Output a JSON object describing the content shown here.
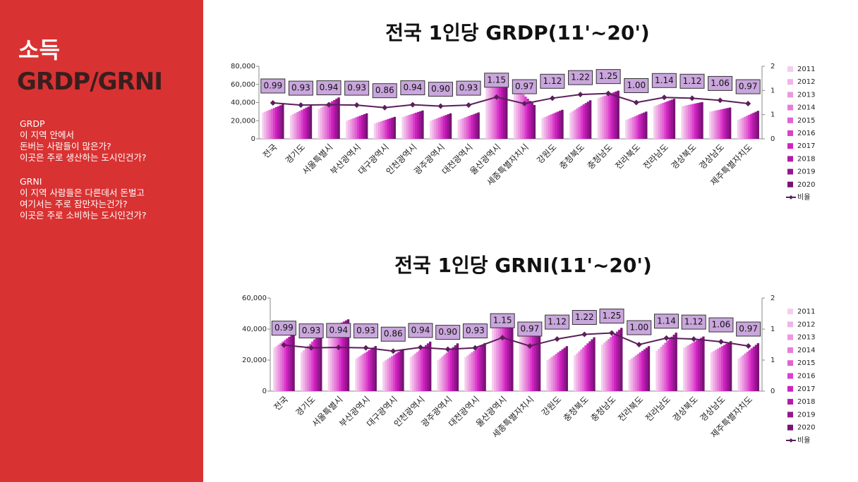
{
  "sidebar": {
    "title": "소득",
    "subtitle": "GRDP/GRNI",
    "paragraphs": [
      [
        "GRDP",
        "이 지역 안에서",
        "돈버는 사람들이 많은가?",
        "이곳은 주로 생산하는 도시인건가?"
      ],
      [
        "GRNI",
        "이 지역 사람들은 다른데서 돈벌고",
        "여기서는 주로 잠만자는건가?",
        "이곳은 주로 소비하는 도시인건가?"
      ]
    ]
  },
  "chart_data": [
    {
      "type": "bar",
      "title": "전국 1인당 GRDP(11'~20')",
      "categories": [
        "전국",
        "경기도",
        "서울특별시",
        "부산광역시",
        "대구광역시",
        "인천광역시",
        "광주광역시",
        "대전광역시",
        "울산광역시",
        "세종특별자치시",
        "강원도",
        "충청북도",
        "충청남도",
        "전라북도",
        "전라남도",
        "경상북도",
        "경상남도",
        "제주특별자치도"
      ],
      "ylim": [
        0,
        80000
      ],
      "yticks": [
        0,
        {
          "value": 20000,
          "label": "20,000"
        },
        {
          "value": 40000,
          "label": "40,000"
        },
        {
          "value": 60000,
          "label": "60,000"
        },
        {
          "value": 80000,
          "label": "80,000"
        }
      ],
      "y2lim": [
        0,
        2
      ],
      "y2ticks": [
        0,
        {
          "value": 0.667,
          "label": "1"
        },
        {
          "value": 1.333,
          "label": "1"
        },
        2
      ],
      "grid": false,
      "legend": "right",
      "series": [
        {
          "name": "2011",
          "color": "#f6cdef",
          "values": [
            29000,
            26000,
            33000,
            20000,
            17000,
            24000,
            20000,
            21000,
            60000,
            58000,
            23000,
            29000,
            45000,
            21000,
            36000,
            36000,
            30000,
            21000
          ]
        },
        {
          "name": "2012",
          "color": "#f1b3e8",
          "values": [
            30000,
            27200,
            34400,
            20900,
            17800,
            24800,
            20900,
            21900,
            60500,
            55700,
            24000,
            30500,
            45900,
            22000,
            36900,
            36500,
            30500,
            22100
          ]
        },
        {
          "name": "2013",
          "color": "#eb98e0",
          "values": [
            31000,
            28400,
            35800,
            21800,
            18600,
            25600,
            21800,
            22800,
            61000,
            53400,
            25000,
            32000,
            46800,
            23000,
            37800,
            37000,
            31000,
            23200
          ]
        },
        {
          "name": "2014",
          "color": "#e67dd9",
          "values": [
            32000,
            29600,
            37200,
            22700,
            19400,
            26400,
            22700,
            23700,
            61500,
            51100,
            26000,
            33500,
            47700,
            24000,
            38700,
            37500,
            31500,
            24300
          ]
        },
        {
          "name": "2015",
          "color": "#e063d1",
          "values": [
            33000,
            30800,
            38600,
            23600,
            20200,
            27200,
            23600,
            24600,
            62000,
            48800,
            27000,
            35000,
            48600,
            25000,
            39600,
            38000,
            32000,
            25400
          ]
        },
        {
          "name": "2016",
          "color": "#dc3fcc",
          "values": [
            34000,
            32000,
            40000,
            24500,
            21000,
            28000,
            24500,
            25500,
            62500,
            46500,
            28000,
            36500,
            49500,
            26000,
            40500,
            38500,
            32500,
            26500
          ]
        },
        {
          "name": "2017",
          "color": "#cf22c0",
          "values": [
            35000,
            33200,
            41400,
            25400,
            21800,
            28800,
            25400,
            26400,
            63000,
            44200,
            29000,
            38000,
            50400,
            27000,
            41400,
            39000,
            33000,
            27600
          ]
        },
        {
          "name": "2018",
          "color": "#b41aa8",
          "values": [
            36000,
            34400,
            42800,
            26300,
            22600,
            29600,
            26300,
            27300,
            63500,
            41900,
            30000,
            39500,
            51300,
            28000,
            42300,
            39500,
            33500,
            28700
          ]
        },
        {
          "name": "2019",
          "color": "#951690",
          "values": [
            37000,
            35600,
            44200,
            27200,
            23400,
            30400,
            27200,
            28200,
            64000,
            39600,
            31000,
            41000,
            52200,
            29000,
            43200,
            40000,
            34000,
            29800
          ]
        },
        {
          "name": "2020",
          "color": "#7a1276",
          "values": [
            38000,
            36800,
            45600,
            28100,
            24200,
            31200,
            28100,
            29100,
            64500,
            37300,
            32000,
            42500,
            53100,
            30000,
            44100,
            40500,
            34500,
            30900
          ]
        },
        {
          "name": "비율",
          "type": "line",
          "axis": "y2",
          "color": "#5a1f5a",
          "values": [
            0.99,
            0.93,
            0.94,
            0.93,
            0.86,
            0.94,
            0.9,
            0.93,
            1.15,
            0.97,
            1.12,
            1.22,
            1.25,
            1.0,
            1.14,
            1.12,
            1.06,
            0.97
          ],
          "value_labels": [
            "0.99",
            "0.93",
            "0.94",
            "0.93",
            "0.86",
            "0.94",
            "0.90",
            "0.93",
            "1.15",
            "0.97",
            "1.12",
            "1.22",
            "1.25",
            "1.00",
            "1.14",
            "1.12",
            "1.06",
            "0.97"
          ]
        }
      ]
    },
    {
      "type": "bar",
      "title": "전국 1인당 GRNI(11'~20')",
      "categories": [
        "전국",
        "경기도",
        "서울특별시",
        "부산광역시",
        "대구광역시",
        "인천광역시",
        "광주광역시",
        "대전광역시",
        "울산광역시",
        "세종특별자치시",
        "강원도",
        "충청북도",
        "충청남도",
        "전라북도",
        "전라남도",
        "경상북도",
        "경상남도",
        "제주특별자치도"
      ],
      "ylim": [
        0,
        60000
      ],
      "yticks": [
        0,
        {
          "value": 20000,
          "label": "20,000"
        },
        {
          "value": 40000,
          "label": "40,000"
        },
        {
          "value": 60000,
          "label": "60,000"
        }
      ],
      "y2lim": [
        0,
        2
      ],
      "y2ticks": [
        0,
        {
          "value": 0.667,
          "label": "1"
        },
        {
          "value": 1.333,
          "label": "1"
        },
        2
      ],
      "grid": false,
      "legend": "right",
      "series": [
        {
          "name": "2011",
          "color": "#f6cdef",
          "values": [
            28000,
            25000,
            40000,
            21000,
            19000,
            22000,
            20000,
            22000,
            44000,
            42000,
            20000,
            23000,
            30000,
            20000,
            26000,
            28000,
            25000,
            21000
          ]
        },
        {
          "name": "2012",
          "color": "#f1b3e8",
          "values": [
            29000,
            26400,
            40700,
            21900,
            19900,
            23100,
            21200,
            23000,
            44500,
            41600,
            21000,
            24300,
            31200,
            21000,
            27300,
            28800,
            25800,
            22100
          ]
        },
        {
          "name": "2013",
          "color": "#eb98e0",
          "values": [
            30000,
            27800,
            41400,
            22800,
            20800,
            24200,
            22400,
            24000,
            45000,
            41200,
            22000,
            25600,
            32400,
            22000,
            28600,
            29600,
            26600,
            23200
          ]
        },
        {
          "name": "2014",
          "color": "#e67dd9",
          "values": [
            31000,
            29200,
            42100,
            23700,
            21700,
            25300,
            23600,
            25000,
            45500,
            40800,
            23000,
            26900,
            33600,
            23000,
            29900,
            30400,
            27400,
            24300
          ]
        },
        {
          "name": "2015",
          "color": "#e063d1",
          "values": [
            32000,
            30600,
            42800,
            24600,
            22600,
            26400,
            24800,
            26000,
            46000,
            40400,
            24000,
            28200,
            34800,
            24000,
            31200,
            31200,
            28200,
            25400
          ]
        },
        {
          "name": "2016",
          "color": "#dc3fcc",
          "values": [
            33000,
            32000,
            43500,
            25500,
            23500,
            27500,
            26000,
            27000,
            46500,
            40000,
            25000,
            29500,
            36000,
            25000,
            32500,
            32000,
            29000,
            26500
          ]
        },
        {
          "name": "2017",
          "color": "#cf22c0",
          "values": [
            34000,
            33400,
            44200,
            26400,
            24400,
            28600,
            27200,
            28000,
            47000,
            39600,
            26000,
            30800,
            37200,
            26000,
            33800,
            32800,
            29800,
            27600
          ]
        },
        {
          "name": "2018",
          "color": "#b41aa8",
          "values": [
            35000,
            34800,
            44900,
            27300,
            25300,
            29700,
            28400,
            29000,
            47500,
            39200,
            27000,
            32100,
            38400,
            27000,
            35100,
            33600,
            30600,
            28700
          ]
        },
        {
          "name": "2019",
          "color": "#951690",
          "values": [
            36000,
            36200,
            45600,
            28200,
            26200,
            30800,
            29600,
            30000,
            48000,
            38800,
            28000,
            33400,
            39600,
            28000,
            36400,
            34400,
            31400,
            29800
          ]
        },
        {
          "name": "2020",
          "color": "#7a1276",
          "values": [
            37000,
            37600,
            46300,
            29100,
            27100,
            31900,
            30800,
            31000,
            48500,
            38400,
            29000,
            34700,
            40800,
            29000,
            37700,
            35200,
            32200,
            30900
          ]
        },
        {
          "name": "비율",
          "type": "line",
          "axis": "y2",
          "color": "#5a1f5a",
          "values": [
            0.99,
            0.93,
            0.94,
            0.93,
            0.86,
            0.94,
            0.9,
            0.93,
            1.15,
            0.97,
            1.12,
            1.22,
            1.25,
            1.0,
            1.14,
            1.12,
            1.06,
            0.97
          ],
          "value_labels": [
            "0.99",
            "0.93",
            "0.94",
            "0.93",
            "0.86",
            "0.94",
            "0.90",
            "0.93",
            "1.15",
            "0.97",
            "1.12",
            "1.22",
            "1.25",
            "1.00",
            "1.14",
            "1.12",
            "1.06",
            "0.97"
          ]
        }
      ]
    }
  ]
}
